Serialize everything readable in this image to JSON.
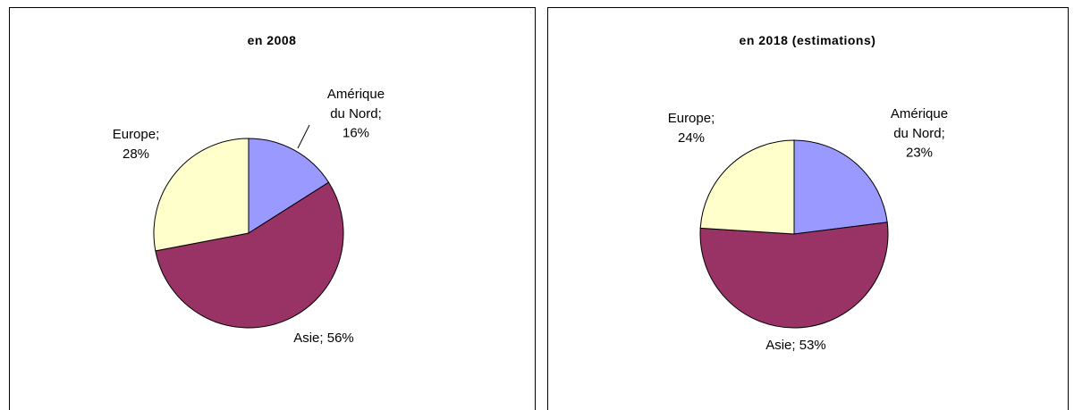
{
  "chart_data": [
    {
      "type": "pie",
      "title": "en 2008",
      "values": [
        16,
        56,
        28
      ],
      "value_labels": [
        "Amérique du Nord; 16%",
        "Asie; 56%",
        "Europe; 28%"
      ],
      "colors": [
        "#9999ff",
        "#993366",
        "#ffffcc"
      ]
    },
    {
      "type": "pie",
      "title": "en 2018 (estimations)",
      "values": [
        23,
        53,
        24
      ],
      "value_labels": [
        "Amérique du Nord; 23%",
        "Asie; 53%",
        "Europe; 24%"
      ],
      "colors": [
        "#9999ff",
        "#993366",
        "#ffffcc"
      ]
    }
  ]
}
